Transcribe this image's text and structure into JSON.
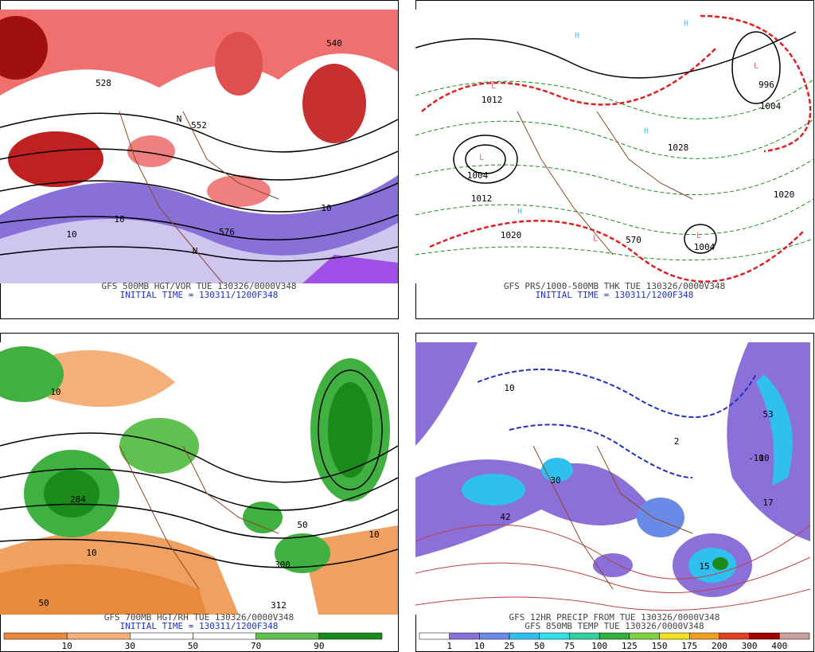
{
  "panels": [
    {
      "caption": [
        "GFS 500MB HGT/VOR TUE 130326/0000V348",
        "INITIAL TIME = 130311/1200F348"
      ],
      "labels": [
        "552",
        "576",
        "10",
        "10",
        "10",
        "N",
        "N",
        "528",
        "540"
      ]
    },
    {
      "caption": [
        "GFS PRS/1000-500MB THK TUE 130326/0000V348",
        "INITIAL TIME = 130311/1200F348"
      ],
      "labels": [
        "L",
        "L",
        "L",
        "L",
        "L",
        "H",
        "H",
        "H",
        "H",
        "1012",
        "1004",
        "1012",
        "1020",
        "996",
        "1004",
        "1028",
        "1020",
        "570",
        "1004"
      ]
    },
    {
      "caption": [
        "GFS 700MB HGT/RH TUE 130326/0000V348",
        "INITIAL TIME = 130311/1200F348"
      ],
      "labels": [
        "10",
        "10",
        "50",
        "284",
        "50",
        "10",
        "300",
        "312"
      ]
    },
    {
      "caption": [
        "GFS 12HR PRECIP FROM TUE 130326/0000V348",
        "GFS 850MB TEMP TUE 130326/0000V348"
      ],
      "labels": [
        "10",
        "30",
        "42",
        "15",
        "10",
        "53",
        "17",
        "-10",
        "2"
      ]
    }
  ],
  "colorbars": [
    {
      "labels": [
        10,
        30,
        50,
        70,
        90
      ],
      "colors": [
        "#e88a3c",
        "#f4b078",
        "#ffffff",
        "#ffffff",
        "#60c050",
        "#1a8a1a"
      ]
    },
    {
      "labels": [
        1,
        10,
        25,
        50,
        75,
        100,
        125,
        150,
        175,
        200,
        300,
        400
      ],
      "colors": [
        "#ffffff",
        "#8a70d8",
        "#6a8ae8",
        "#30c0f0",
        "#30e0e8",
        "#30d0a0",
        "#30b040",
        "#80d040",
        "#f0e020",
        "#f0a020",
        "#e04020",
        "#a00000",
        "#c8a0a0"
      ]
    }
  ]
}
